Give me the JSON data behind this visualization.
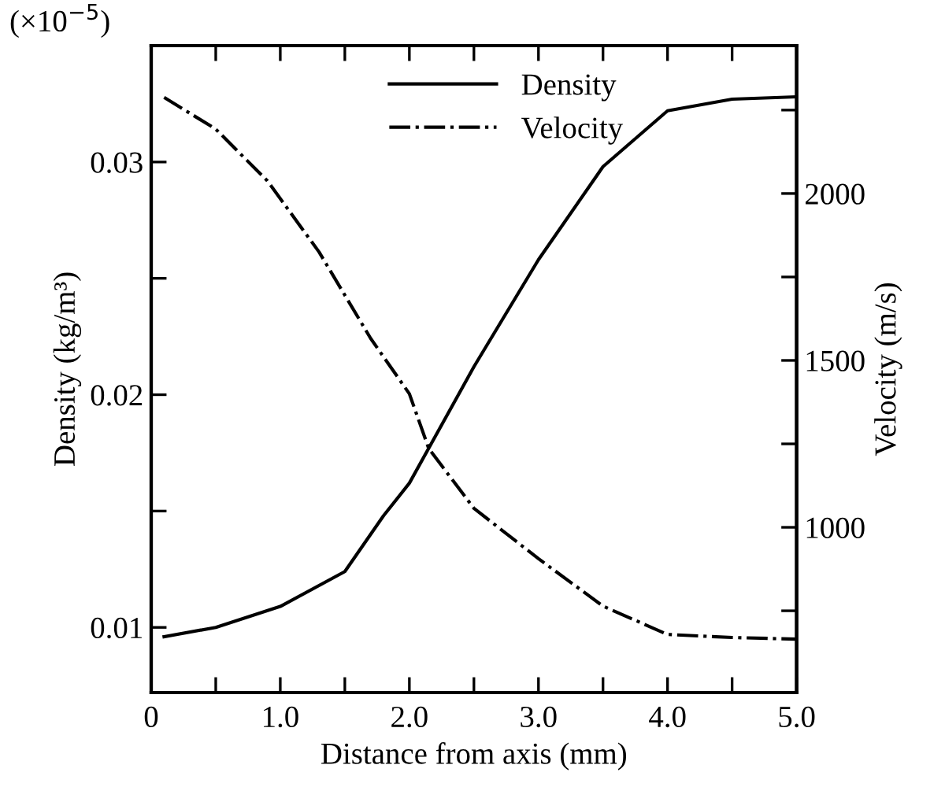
{
  "chart_data": {
    "type": "line",
    "xlabel": "Distance from axis (mm)",
    "ylabel": "Density (kg/m³)",
    "y2label": "Velocity (m/s)",
    "annotations": [
      "(×10$^{−5}$)"
    ],
    "series": [
      {
        "name": "Density",
        "color": "#000000",
        "line_style": "solid",
        "x": [
          0.1,
          0.5,
          1.0,
          1.5,
          1.8,
          2.0,
          2.15,
          2.5,
          3.0,
          3.5,
          4.0,
          4.5,
          5.0
        ],
        "values": [
          0.0096,
          0.01,
          0.0109,
          0.0124,
          0.0148,
          0.0162,
          0.0177,
          0.0212,
          0.0258,
          0.0298,
          0.0322,
          0.0327,
          0.0328
        ]
      },
      {
        "name": "Velocity",
        "color": "#000000",
        "line_style": "dashdot",
        "axis": "y2",
        "x": [
          0.1,
          0.5,
          0.9,
          1.3,
          1.7,
          2.0,
          2.15,
          2.5,
          3.0,
          3.5,
          4.0,
          4.5,
          5.0
        ],
        "values": [
          2288,
          2193,
          2038,
          1825,
          1566,
          1400,
          1236,
          1057,
          906,
          764,
          679,
          670,
          665
        ]
      }
    ],
    "xlim": [
      0,
      5.0
    ],
    "xticks": [
      0,
      {
        "value": 0.5,
        "label": null
      },
      {
        "value": 1.0,
        "label": "1.0"
      },
      {
        "value": 1.5,
        "label": null
      },
      {
        "value": 2.0,
        "label": "2.0"
      },
      {
        "value": 2.5,
        "label": null
      },
      {
        "value": 3.0,
        "label": "3.0"
      },
      {
        "value": 3.5,
        "label": null
      },
      {
        "value": 4.0,
        "label": "4.0"
      },
      {
        "value": 4.5,
        "label": null
      },
      {
        "value": 5.0,
        "label": "5.0"
      }
    ],
    "ylim": [
      0.0072,
      0.035
    ],
    "yticks": [
      0.01,
      {
        "value": 0.015,
        "label": null
      },
      0.02,
      {
        "value": 0.025,
        "label": null
      },
      0.03
    ],
    "y2lim": [
      505,
      2443
    ],
    "y2ticks": [
      {
        "value": 750,
        "label": null
      },
      1000,
      {
        "value": 1250,
        "label": null
      },
      1500,
      {
        "value": 1750,
        "label": null
      },
      2000,
      {
        "value": 2250,
        "label": null
      }
    ],
    "grid": false,
    "legend": "top"
  }
}
